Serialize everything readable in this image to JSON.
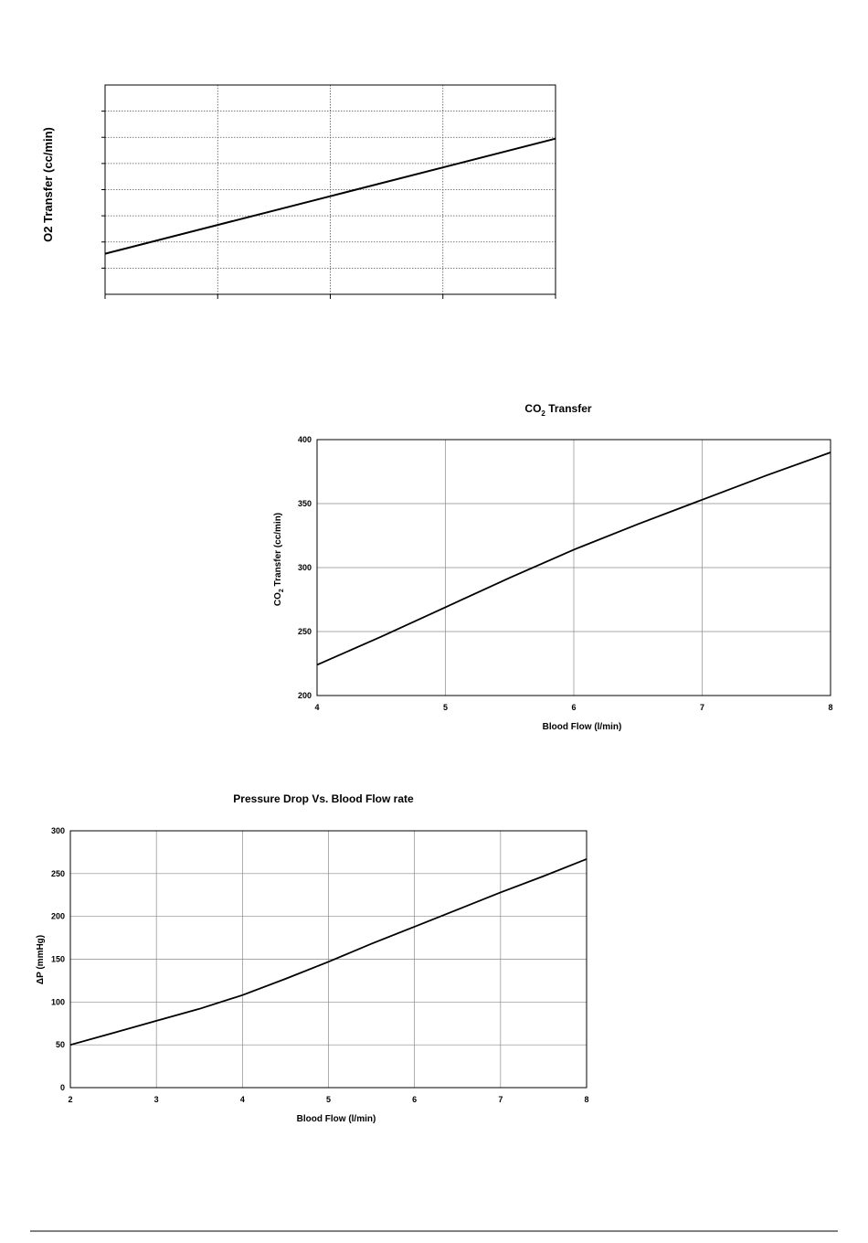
{
  "chart_data": [
    {
      "type": "line",
      "title": "",
      "xlabel": "",
      "ylabel": "O2 Transfer (cc/min)",
      "x": [
        0,
        1,
        2,
        3,
        4
      ],
      "series": [
        {
          "values": [
            1.55,
            2.65,
            3.75,
            4.85,
            5.95
          ]
        }
      ],
      "xlim": [
        0,
        4
      ],
      "ylim": [
        0,
        8
      ],
      "grid": "dotted",
      "xticks_labelled": false,
      "yticks_labelled": false
    },
    {
      "type": "line",
      "title_parts": [
        "CO",
        "2",
        " Transfer"
      ],
      "xlabel": "Blood Flow (l/min)",
      "ylabel_parts": [
        "CO",
        "2",
        " Transfer (cc/min)"
      ],
      "x": [
        4,
        4.5,
        5,
        5.5,
        6,
        6.5,
        7,
        7.5,
        8
      ],
      "series": [
        {
          "values": [
            224,
            246,
            269,
            292,
            314,
            334,
            353,
            372,
            390
          ]
        }
      ],
      "xlim": [
        4,
        8
      ],
      "ylim": [
        200,
        400
      ],
      "xticks": [
        4,
        5,
        6,
        7,
        8
      ],
      "yticks": [
        200,
        250,
        300,
        350,
        400
      ],
      "grid": "solid"
    },
    {
      "type": "line",
      "title": "Pressure Drop Vs. Blood Flow rate",
      "xlabel": "Blood Flow (l/min)",
      "ylabel": "ΔP (mmHg)",
      "x": [
        2,
        2.5,
        3,
        3.5,
        4,
        4.5,
        5,
        5.5,
        6,
        6.5,
        7,
        7.5,
        8
      ],
      "series": [
        {
          "values": [
            50,
            64,
            78,
            92,
            108,
            127,
            147,
            168,
            188,
            208,
            228,
            247,
            267
          ]
        }
      ],
      "xlim": [
        2,
        8
      ],
      "ylim": [
        0,
        300
      ],
      "xticks": [
        2,
        3,
        4,
        5,
        6,
        7,
        8
      ],
      "yticks": [
        0,
        50,
        100,
        150,
        200,
        250,
        300
      ],
      "grid": "solid"
    }
  ]
}
